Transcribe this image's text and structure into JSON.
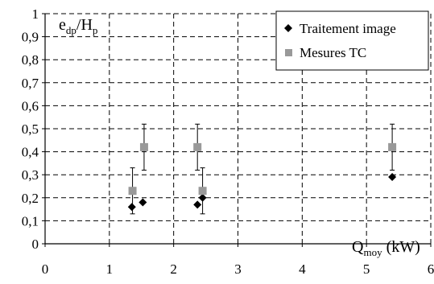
{
  "chart_data": {
    "type": "scatter",
    "xlim": [
      0,
      6
    ],
    "ylim": [
      0,
      1
    ],
    "x_ticks": [
      "0",
      "1",
      "2",
      "3",
      "4",
      "5",
      "6"
    ],
    "y_ticks": [
      "0",
      "0,1",
      "0,2",
      "0,3",
      "0,4",
      "0,5",
      "0,6",
      "0,7",
      "0,8",
      "0,9",
      "1"
    ],
    "ylabel": {
      "main": "e",
      "sub1": "dp",
      "slash": "/H",
      "sub2": "p"
    },
    "xlabel": {
      "main": "Q",
      "sub": "moy",
      "unit": " (kW)"
    },
    "grid": true,
    "legend_position": "top-right",
    "series": [
      {
        "name": "Traitement image",
        "marker": "diamond",
        "color": "#000000",
        "points": [
          {
            "x": 1.35,
            "y": 0.16
          },
          {
            "x": 1.52,
            "y": 0.18
          },
          {
            "x": 2.37,
            "y": 0.17
          },
          {
            "x": 2.45,
            "y": 0.2
          },
          {
            "x": 5.4,
            "y": 0.29
          }
        ]
      },
      {
        "name": "Mesures TC",
        "marker": "square",
        "color": "#999999",
        "points": [
          {
            "x": 1.36,
            "y": 0.23,
            "err": 0.1
          },
          {
            "x": 1.54,
            "y": 0.42,
            "err": 0.1
          },
          {
            "x": 2.37,
            "y": 0.42,
            "err": 0.1
          },
          {
            "x": 2.45,
            "y": 0.23,
            "err": 0.1
          },
          {
            "x": 5.4,
            "y": 0.42,
            "err": 0.1
          }
        ]
      }
    ]
  }
}
